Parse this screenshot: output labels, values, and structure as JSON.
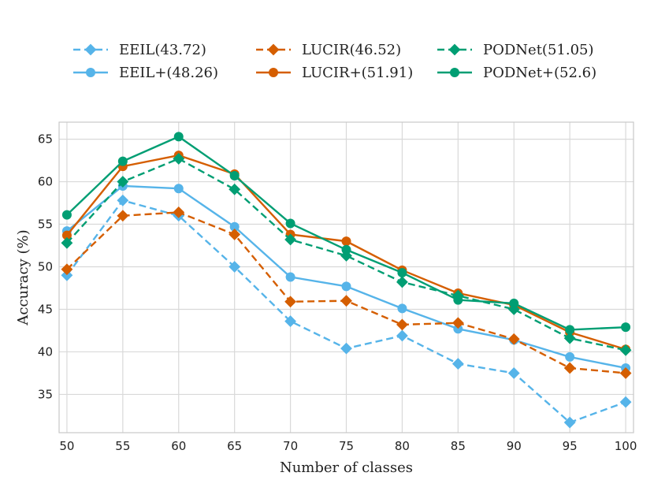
{
  "chart_data": {
    "type": "line",
    "title": "",
    "xlabel": "Number of classes",
    "ylabel": "Accuracy (%)",
    "x": [
      50,
      55,
      60,
      65,
      70,
      75,
      80,
      85,
      90,
      95,
      100
    ],
    "x_tick_labels": [
      "50",
      "55",
      "60",
      "65",
      "70",
      "75",
      "80",
      "85",
      "90",
      "95",
      "100"
    ],
    "y_ticks": [
      35,
      40,
      45,
      50,
      55,
      60,
      65
    ],
    "y_tick_labels": [
      "35",
      "40",
      "45",
      "50",
      "55",
      "60",
      "65"
    ],
    "xlim": [
      49.3,
      100.7
    ],
    "ylim": [
      30.5,
      67
    ],
    "grid": true,
    "legend_position": "top",
    "series": [
      {
        "name": "EEIL(43.72)",
        "color": "#56b4e9",
        "dash": "dashed",
        "marker": "diamond",
        "values": [
          49.0,
          57.8,
          56.0,
          50.0,
          43.6,
          40.4,
          41.9,
          38.6,
          37.5,
          31.7,
          34.1
        ]
      },
      {
        "name": "EEIL+(48.26)",
        "color": "#56b4e9",
        "dash": "solid",
        "marker": "circle",
        "values": [
          54.2,
          59.5,
          59.2,
          54.7,
          48.8,
          47.7,
          45.1,
          42.7,
          41.4,
          39.4,
          38.1
        ]
      },
      {
        "name": "LUCIR(46.52)",
        "color": "#d55e00",
        "dash": "dashed",
        "marker": "diamond",
        "values": [
          49.7,
          56.0,
          56.4,
          53.8,
          45.9,
          46.0,
          43.2,
          43.4,
          41.5,
          38.1,
          37.5
        ]
      },
      {
        "name": "LUCIR+(51.91)",
        "color": "#d55e00",
        "dash": "solid",
        "marker": "circle",
        "values": [
          53.7,
          61.8,
          63.1,
          60.9,
          53.8,
          53.0,
          49.6,
          46.9,
          45.5,
          42.3,
          40.3
        ]
      },
      {
        "name": "PODNet(51.05)",
        "color": "#009e73",
        "dash": "dashed",
        "marker": "diamond",
        "values": [
          52.8,
          60.0,
          62.7,
          59.1,
          53.2,
          51.3,
          48.2,
          46.6,
          45.0,
          41.6,
          40.2
        ]
      },
      {
        "name": "PODNet+(52.6)",
        "color": "#009e73",
        "dash": "solid",
        "marker": "circle",
        "values": [
          56.1,
          62.4,
          65.3,
          60.7,
          55.1,
          52.0,
          49.3,
          46.1,
          45.7,
          42.6,
          42.9
        ]
      }
    ]
  }
}
